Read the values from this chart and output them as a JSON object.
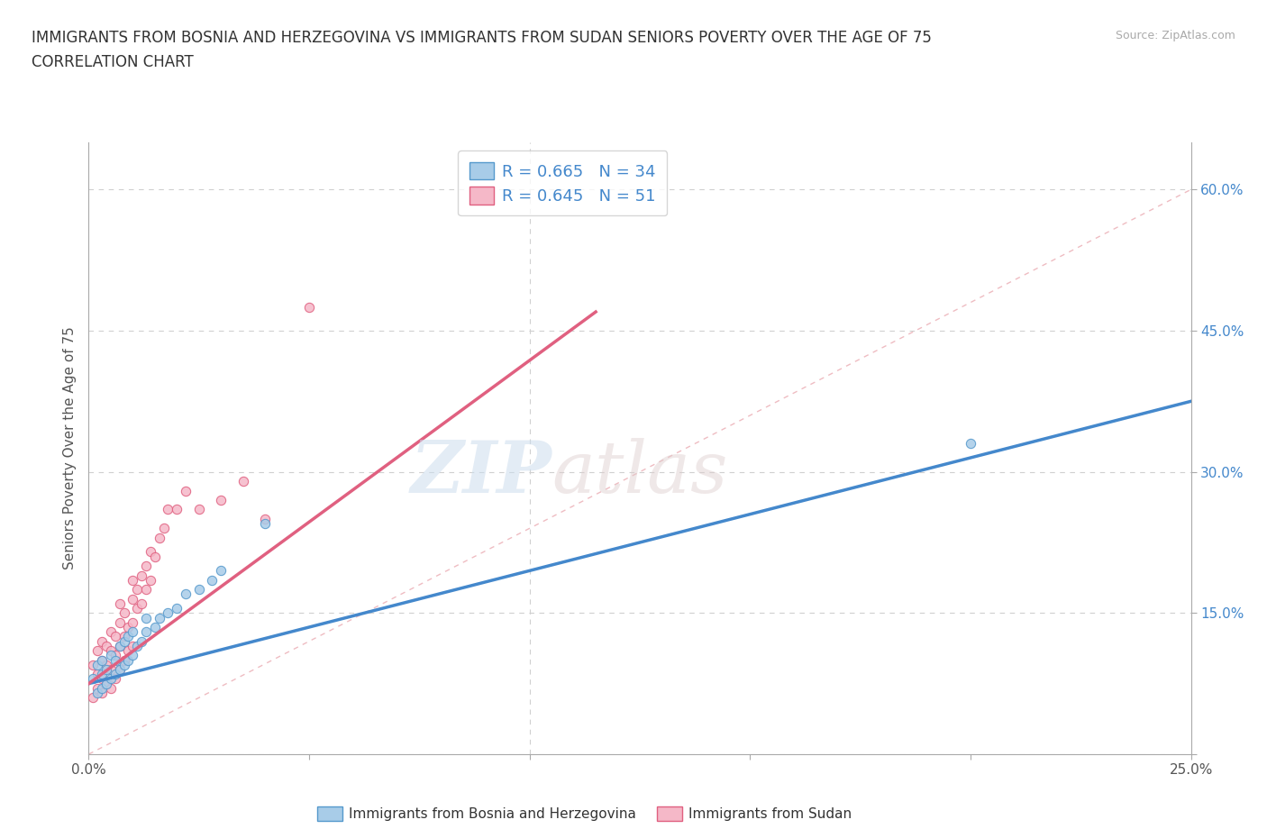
{
  "title_line1": "IMMIGRANTS FROM BOSNIA AND HERZEGOVINA VS IMMIGRANTS FROM SUDAN SENIORS POVERTY OVER THE AGE OF 75",
  "title_line2": "CORRELATION CHART",
  "source": "Source: ZipAtlas.com",
  "ylabel": "Seniors Poverty Over the Age of 75",
  "xlim": [
    0.0,
    0.25
  ],
  "ylim": [
    0.0,
    0.65
  ],
  "xticks": [
    0.0,
    0.05,
    0.1,
    0.15,
    0.2,
    0.25
  ],
  "yticks": [
    0.0,
    0.15,
    0.3,
    0.45,
    0.6
  ],
  "bosnia_fill": "#a8cce8",
  "bosnia_edge": "#5599cc",
  "sudan_fill": "#f5b8c8",
  "sudan_edge": "#e06080",
  "line_bosnia_color": "#4488cc",
  "line_sudan_color": "#e06080",
  "diagonal_color": "#e8a0a8",
  "r_bosnia": 0.665,
  "n_bosnia": 34,
  "r_sudan": 0.645,
  "n_sudan": 51,
  "watermark_zip": "ZIP",
  "watermark_atlas": "atlas",
  "legend_label_bosnia": "Immigrants from Bosnia and Herzegovina",
  "legend_label_sudan": "Immigrants from Sudan",
  "bosnia_scatter_x": [
    0.001,
    0.002,
    0.002,
    0.003,
    0.003,
    0.003,
    0.004,
    0.004,
    0.005,
    0.005,
    0.006,
    0.006,
    0.007,
    0.007,
    0.008,
    0.008,
    0.009,
    0.009,
    0.01,
    0.01,
    0.011,
    0.012,
    0.013,
    0.013,
    0.015,
    0.016,
    0.018,
    0.02,
    0.022,
    0.025,
    0.028,
    0.03,
    0.04,
    0.2
  ],
  "bosnia_scatter_y": [
    0.08,
    0.065,
    0.095,
    0.07,
    0.085,
    0.1,
    0.075,
    0.09,
    0.08,
    0.105,
    0.085,
    0.1,
    0.09,
    0.115,
    0.095,
    0.12,
    0.1,
    0.125,
    0.105,
    0.13,
    0.115,
    0.12,
    0.13,
    0.145,
    0.135,
    0.145,
    0.15,
    0.155,
    0.17,
    0.175,
    0.185,
    0.195,
    0.245,
    0.33
  ],
  "sudan_scatter_x": [
    0.001,
    0.001,
    0.002,
    0.002,
    0.002,
    0.003,
    0.003,
    0.003,
    0.003,
    0.004,
    0.004,
    0.004,
    0.005,
    0.005,
    0.005,
    0.005,
    0.006,
    0.006,
    0.006,
    0.007,
    0.007,
    0.007,
    0.007,
    0.008,
    0.008,
    0.008,
    0.009,
    0.009,
    0.01,
    0.01,
    0.01,
    0.01,
    0.011,
    0.011,
    0.012,
    0.012,
    0.013,
    0.013,
    0.014,
    0.014,
    0.015,
    0.016,
    0.017,
    0.018,
    0.02,
    0.022,
    0.025,
    0.03,
    0.035,
    0.04,
    0.05
  ],
  "sudan_scatter_y": [
    0.06,
    0.095,
    0.07,
    0.085,
    0.11,
    0.065,
    0.08,
    0.1,
    0.12,
    0.075,
    0.095,
    0.115,
    0.07,
    0.09,
    0.11,
    0.13,
    0.08,
    0.105,
    0.125,
    0.09,
    0.115,
    0.14,
    0.16,
    0.1,
    0.125,
    0.15,
    0.11,
    0.135,
    0.115,
    0.14,
    0.165,
    0.185,
    0.155,
    0.175,
    0.16,
    0.19,
    0.175,
    0.2,
    0.185,
    0.215,
    0.21,
    0.23,
    0.24,
    0.26,
    0.26,
    0.28,
    0.26,
    0.27,
    0.29,
    0.25,
    0.475
  ]
}
